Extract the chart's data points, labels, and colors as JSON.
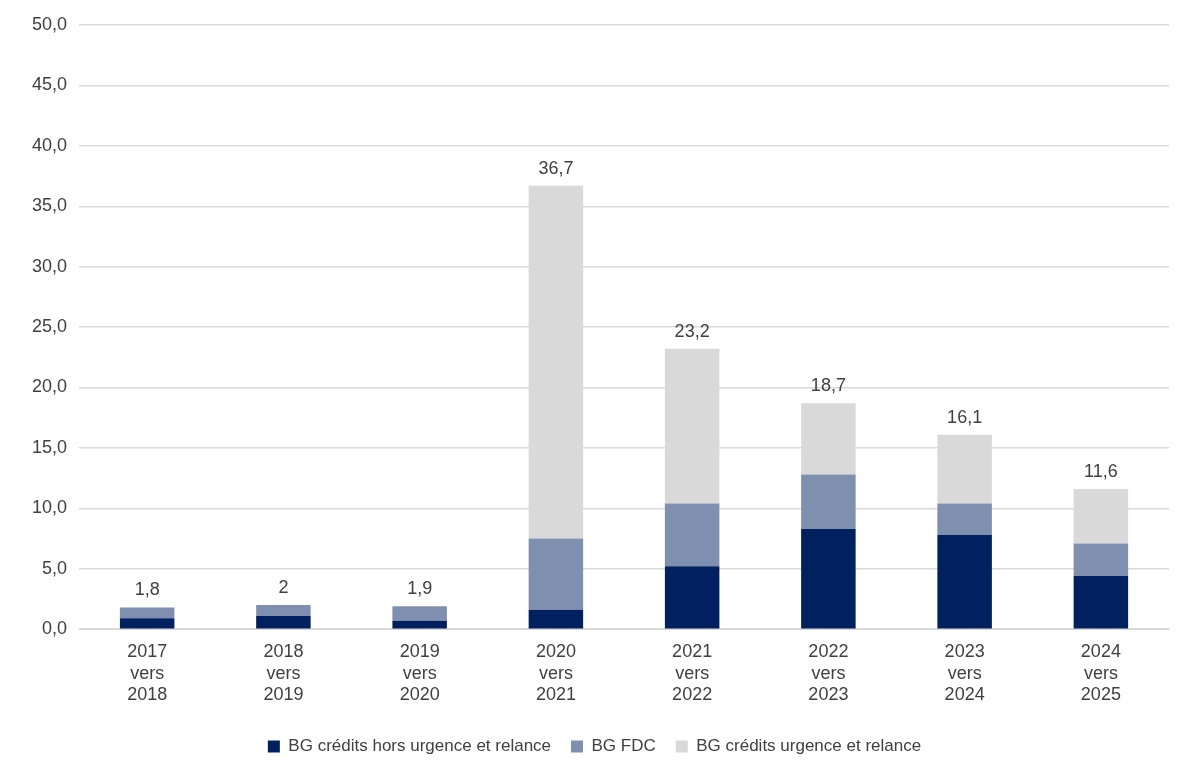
{
  "chart_data": {
    "type": "bar",
    "stacked": true,
    "categories": [
      "2017 vers 2018",
      "2018 vers 2019",
      "2019 vers 2020",
      "2020 vers 2021",
      "2021 vers 2022",
      "2022 vers 2023",
      "2023 vers 2024",
      "2024 vers 2025"
    ],
    "series": [
      {
        "name": "BG crédits hors urgence et relance",
        "color": "#002060",
        "values": [
          0.9,
          1.1,
          0.7,
          1.6,
          5.2,
          8.3,
          7.8,
          4.4
        ]
      },
      {
        "name": "BG FDC",
        "color": "#7f8fb0",
        "values": [
          0.9,
          0.9,
          1.2,
          5.9,
          5.2,
          4.5,
          2.6,
          2.7
        ]
      },
      {
        "name": "BG crédits urgence et relance",
        "color": "#d9d9d9",
        "values": [
          null,
          null,
          null,
          29.2,
          12.8,
          5.9,
          5.7,
          4.5
        ]
      }
    ],
    "totals": [
      "1,8",
      "2",
      "1,9",
      "36,7",
      "23,2",
      "18,7",
      "16,1",
      "11,6"
    ],
    "ylim": [
      0,
      50
    ],
    "yticks": [
      {
        "value": 0,
        "label": "0,0"
      },
      {
        "value": 5,
        "label": "5,0"
      },
      {
        "value": 10,
        "label": "10,0"
      },
      {
        "value": 15,
        "label": "15,0"
      },
      {
        "value": 20,
        "label": "20,0"
      },
      {
        "value": 25,
        "label": "25,0"
      },
      {
        "value": 30,
        "label": "30,0"
      },
      {
        "value": 35,
        "label": "35,0"
      },
      {
        "value": 40,
        "label": "40,0"
      },
      {
        "value": 45,
        "label": "45,0"
      },
      {
        "value": 50,
        "label": "50,0"
      }
    ],
    "grid": "y",
    "legend": "bottom"
  }
}
